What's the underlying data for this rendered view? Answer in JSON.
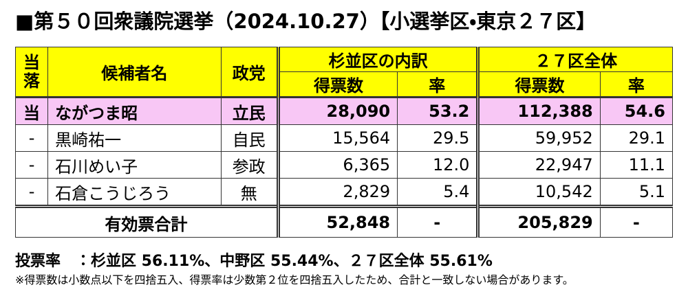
{
  "title": "■第５０回衆議院選挙（2024.10.27）【小選挙区・東京２７区】",
  "table": {
    "header": {
      "result": "当落",
      "name": "候補者名",
      "party": "政党",
      "group1": "杉並区の内訳",
      "group2": "２７区全体",
      "votes1": "得票数",
      "rate1": "率",
      "votes2": "得票数",
      "rate2": "率"
    },
    "rows": [
      [
        "当",
        "ながつま昭",
        "立民",
        "28,090",
        "53.2",
        "112,388",
        "54.6"
      ],
      [
        "-",
        "黒崎祐一",
        "自民",
        "15,564",
        "29.5",
        "59,952",
        "29.1"
      ],
      [
        "-",
        "石川めい子",
        "参政",
        "6,365",
        "12.0",
        "22,947",
        "11.1"
      ],
      [
        "-",
        "石倉こうじろう",
        "無",
        "2,829",
        "5.4",
        "10,542",
        "5.1"
      ]
    ],
    "total": {
      "label": "有効票合計",
      "votes1": "52,848",
      "rate1": "-",
      "votes2": "205,829",
      "rate2": "-"
    }
  },
  "turnout": "投票率　：杉並区 56.11%、中野区 55.44%、２７区全体 55.61%",
  "note": "※得票数は小数点以下を四捨五入、得票率は少数第２位を四捨五入したため、合計と一致しない場合があります。"
}
